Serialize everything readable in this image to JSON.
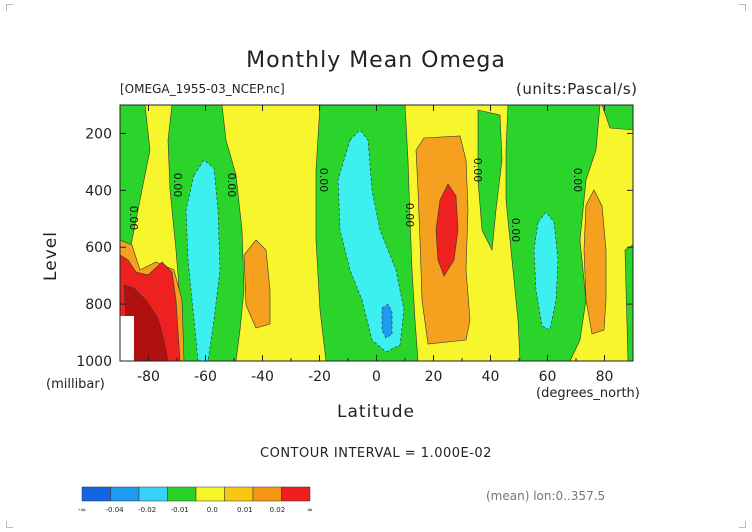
{
  "chart_data": {
    "type": "heatmap",
    "title": "Monthly Mean Omega",
    "file": "[OMEGA_1955-03_NCEP.nc]",
    "units": "(units:Pascal/s)",
    "ylabel": "Level",
    "yunit": "(millibar)",
    "xlabel": "Latitude",
    "xunit": "(degrees_north)",
    "xlim": [
      -90,
      90
    ],
    "ylim": [
      1000,
      100
    ],
    "x_ticks": [
      "-80",
      "-60",
      "-40",
      "-20",
      "0",
      "20",
      "40",
      "60",
      "80"
    ],
    "x_tick_values": [
      -80,
      -60,
      -40,
      -20,
      0,
      20,
      40,
      60,
      80
    ],
    "y_ticks": [
      "200",
      "400",
      "600",
      "800",
      "1000"
    ],
    "y_tick_values": [
      200,
      400,
      600,
      800,
      1000
    ],
    "contour_interval": "CONTOUR INTERVAL = 1.000E-02",
    "contour_labels": [
      "0.00",
      "0.00",
      "0.00",
      "0.00",
      "0.00",
      "0.00",
      "0.00",
      "0.00"
    ],
    "legend": {
      "colors": [
        "#1464e6",
        "#1e9bf0",
        "#37d2f5",
        "#28d228",
        "#f5f528",
        "#f5c814",
        "#f59614",
        "#f01e1e"
      ],
      "labels": [
        "-∞",
        "-0.04",
        "-0.02",
        "-0.01",
        "0.0",
        "0.01",
        "0.02",
        "∞"
      ]
    },
    "mean_note": "(mean) lon:0..357.5"
  },
  "colors": {
    "yellow": "#f7f52b",
    "green": "#2ad42a",
    "cyan": "#3cf0f0",
    "orange": "#f5a01e",
    "red": "#ef2020",
    "darkred": "#b01010"
  }
}
